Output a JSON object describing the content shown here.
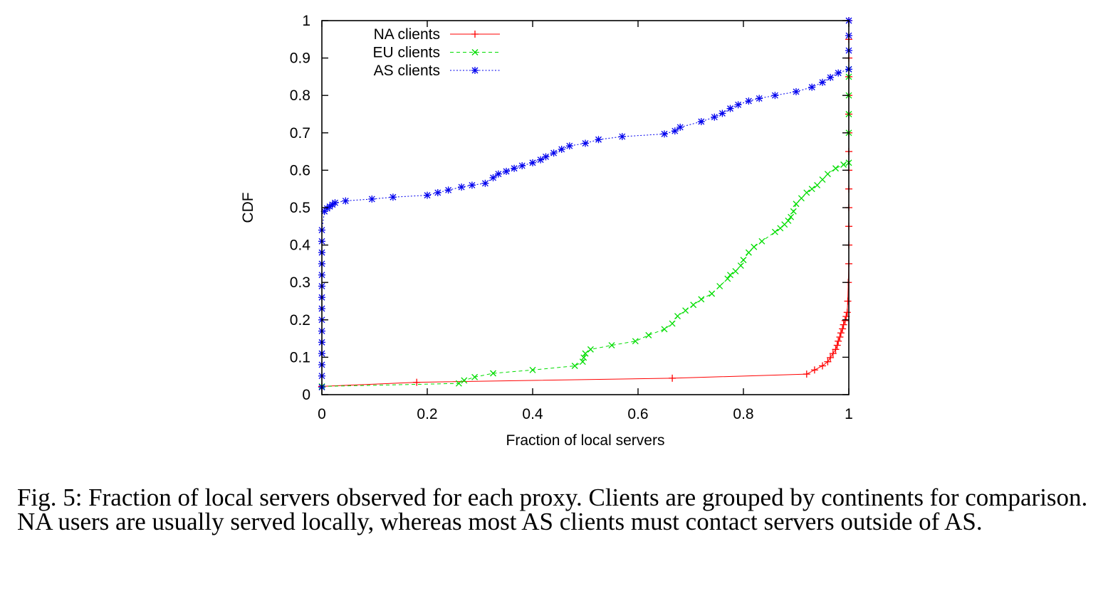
{
  "chart_data": {
    "type": "line",
    "title": "",
    "xlabel": "Fraction of local servers",
    "ylabel": "CDF",
    "xlim": [
      0,
      1
    ],
    "ylim": [
      0,
      1
    ],
    "x_ticks": [
      "0",
      "0.2",
      "0.4",
      "0.6",
      "0.8",
      "1"
    ],
    "y_ticks": [
      "0",
      "0.1",
      "0.2",
      "0.3",
      "0.4",
      "0.5",
      "0.6",
      "0.7",
      "0.8",
      "0.9",
      "1"
    ],
    "legend_position": "top-left",
    "series": [
      {
        "name": "NA clients",
        "color": "#ff0000",
        "marker": "plus",
        "dash": "solid",
        "x": [
          0.0,
          0.18,
          0.665,
          0.92,
          0.935,
          0.95,
          0.96,
          0.965,
          0.97,
          0.975,
          0.978,
          0.98,
          0.983,
          0.985,
          0.988,
          0.99,
          0.993,
          0.995,
          0.997,
          0.998,
          0.999,
          1.0,
          1.0,
          1.0,
          1.0,
          1.0,
          1.0,
          1.0,
          1.0,
          1.0,
          1.0,
          1.0,
          1.0,
          1.0,
          1.0
        ],
        "y": [
          0.022,
          0.033,
          0.044,
          0.055,
          0.066,
          0.077,
          0.088,
          0.099,
          0.11,
          0.121,
          0.132,
          0.143,
          0.154,
          0.165,
          0.176,
          0.187,
          0.198,
          0.209,
          0.22,
          0.25,
          0.3,
          0.35,
          0.4,
          0.45,
          0.5,
          0.55,
          0.6,
          0.65,
          0.7,
          0.75,
          0.8,
          0.85,
          0.9,
          0.95,
          1.0
        ]
      },
      {
        "name": "EU clients",
        "color": "#00dd00",
        "marker": "cross",
        "dash": "dashed",
        "x": [
          0.0,
          0.26,
          0.27,
          0.29,
          0.325,
          0.4,
          0.48,
          0.495,
          0.497,
          0.5,
          0.51,
          0.55,
          0.595,
          0.62,
          0.65,
          0.665,
          0.675,
          0.69,
          0.705,
          0.72,
          0.74,
          0.755,
          0.77,
          0.775,
          0.785,
          0.795,
          0.8,
          0.81,
          0.82,
          0.835,
          0.86,
          0.87,
          0.878,
          0.885,
          0.89,
          0.895,
          0.9,
          0.91,
          0.92,
          0.93,
          0.94,
          0.95,
          0.96,
          0.975,
          0.99,
          1.0,
          1.0,
          1.0,
          1.0,
          1.0,
          1.0
        ],
        "y": [
          0.022,
          0.03,
          0.038,
          0.047,
          0.057,
          0.066,
          0.077,
          0.088,
          0.099,
          0.11,
          0.121,
          0.132,
          0.143,
          0.159,
          0.175,
          0.19,
          0.21,
          0.225,
          0.24,
          0.255,
          0.27,
          0.29,
          0.31,
          0.32,
          0.33,
          0.345,
          0.36,
          0.38,
          0.395,
          0.41,
          0.435,
          0.445,
          0.455,
          0.465,
          0.475,
          0.49,
          0.51,
          0.525,
          0.54,
          0.55,
          0.56,
          0.575,
          0.59,
          0.605,
          0.615,
          0.62,
          0.7,
          0.75,
          0.8,
          0.85,
          0.87
        ]
      },
      {
        "name": "AS clients",
        "color": "#0000ee",
        "marker": "star",
        "dash": "dotted",
        "x": [
          0.0,
          0.0,
          0.0,
          0.0,
          0.0,
          0.0,
          0.0,
          0.0,
          0.0,
          0.0,
          0.0,
          0.0,
          0.0,
          0.0,
          0.0,
          0.005,
          0.01,
          0.015,
          0.02,
          0.025,
          0.045,
          0.095,
          0.135,
          0.2,
          0.22,
          0.24,
          0.265,
          0.285,
          0.31,
          0.325,
          0.335,
          0.35,
          0.365,
          0.38,
          0.4,
          0.415,
          0.425,
          0.44,
          0.455,
          0.47,
          0.5,
          0.525,
          0.57,
          0.65,
          0.67,
          0.68,
          0.72,
          0.745,
          0.76,
          0.775,
          0.79,
          0.81,
          0.83,
          0.86,
          0.9,
          0.93,
          0.95,
          0.965,
          0.98,
          1.0,
          1.0,
          1.0,
          1.0
        ],
        "y": [
          0.02,
          0.05,
          0.08,
          0.11,
          0.14,
          0.17,
          0.2,
          0.23,
          0.26,
          0.29,
          0.32,
          0.35,
          0.38,
          0.41,
          0.44,
          0.49,
          0.498,
          0.503,
          0.508,
          0.513,
          0.518,
          0.523,
          0.528,
          0.533,
          0.54,
          0.547,
          0.555,
          0.56,
          0.565,
          0.58,
          0.59,
          0.597,
          0.605,
          0.612,
          0.62,
          0.628,
          0.636,
          0.646,
          0.656,
          0.665,
          0.672,
          0.682,
          0.69,
          0.697,
          0.705,
          0.715,
          0.73,
          0.742,
          0.752,
          0.765,
          0.775,
          0.785,
          0.792,
          0.8,
          0.81,
          0.822,
          0.835,
          0.848,
          0.86,
          0.87,
          0.92,
          0.96,
          1.0
        ]
      }
    ]
  },
  "caption": "Fig. 5: Fraction of local servers observed for each proxy. Clients are grouped by continents for comparison. NA users are usually served locally, whereas most AS clients must contact servers outside of AS."
}
